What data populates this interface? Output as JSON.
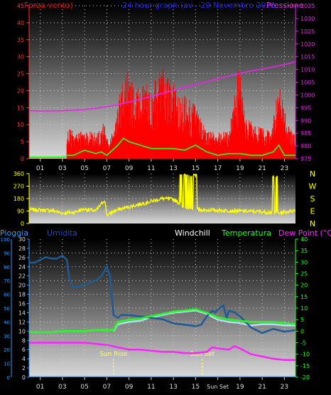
{
  "panel1": {
    "left_title": "Forza vento)",
    "center_title": "24 hour graph (av - 29 Novembre 2021",
    "right_title": "Pressione",
    "colors": {
      "wind": "#ff0000",
      "gust_line": "#22ff22",
      "pressure": "#ee22ee",
      "left_title": "#ff0000",
      "center_title": "#2222ff",
      "right_title": "#ee22ee"
    }
  },
  "panel2": {
    "compass_labels": [
      "N",
      "W",
      "S",
      "E",
      "N"
    ],
    "colors": {
      "direction": "#ffff00",
      "compass": "#ffff00"
    }
  },
  "panel3": {
    "titles": {
      "rain": "Pioggia",
      "humidity": "Umidita",
      "windchill": "Windchill",
      "temperature": "Temperatura",
      "dewpoint": "Dew Point (°C)"
    },
    "sunrise_label": "Sun Rise",
    "sunset_label": "Sun Set",
    "sunset_tick": "Sun Set",
    "colors": {
      "rain_title": "#3399ff",
      "humidity_title": "#2244cc",
      "windchill_title": "#ffffff",
      "temperature_title": "#22ff22",
      "dewpoint_title": "#ff22ff",
      "humidity": "#1f5a96",
      "temperature": "#22ff22",
      "dewpoint": "#ff22ff",
      "windchill": "#aee0f0",
      "rain": "#3399ff",
      "sun": "#ffff66"
    }
  },
  "x_ticks": [
    "01",
    "03",
    "05",
    "07",
    "09",
    "11",
    "13",
    "15",
    "17",
    "19",
    "21",
    "23"
  ],
  "x_ticks_bottom": [
    "01",
    "03",
    "05",
    "07",
    "09",
    "11",
    "13",
    "15",
    "Sun Set",
    "19",
    "21",
    "23"
  ],
  "chart_data": [
    {
      "type": "line",
      "title": "24 hour graph (av - 29 Novembre 2021",
      "x_range_hours": [
        0,
        24
      ],
      "x_ticks": [
        "01",
        "03",
        "05",
        "07",
        "09",
        "11",
        "13",
        "15",
        "17",
        "19",
        "21",
        "23"
      ],
      "left_axis": {
        "label": "Forza vento)",
        "ylim": [
          0,
          45
        ],
        "ticks": [
          0,
          5,
          10,
          15,
          20,
          25,
          30,
          35,
          40,
          45
        ]
      },
      "right_axis": {
        "label": "Pressione",
        "ylim": [
          975,
          1035
        ],
        "ticks": [
          975,
          980,
          985,
          990,
          995,
          1000,
          1005,
          1010,
          1015,
          1020,
          1025,
          1030,
          1035
        ]
      },
      "series": [
        {
          "name": "Pressione",
          "axis": "right",
          "x": [
            0,
            1,
            2,
            3,
            4,
            5,
            6,
            7,
            8,
            9,
            10,
            11,
            12,
            13,
            14,
            15,
            16,
            17,
            18,
            19,
            20,
            21,
            22,
            23,
            24
          ],
          "values": [
            993.8,
            993.7,
            993.7,
            993.8,
            994.0,
            994.3,
            994.8,
            995.4,
            996.2,
            997.2,
            998.3,
            999.4,
            1000.6,
            1001.8,
            1003.0,
            1004.1,
            1005.2,
            1006.3,
            1007.4,
            1008.4,
            1009.4,
            1010.2,
            1011.0,
            1011.9,
            1013.0
          ]
        },
        {
          "axis": "left",
          "x": [
            0,
            1,
            2,
            3,
            3.5,
            4,
            5,
            6,
            6.5,
            7,
            8,
            8.5,
            9,
            10,
            11,
            12,
            13,
            14,
            15,
            16,
            17,
            18,
            19,
            20,
            21,
            22,
            22.5,
            23,
            24
          ],
          "values": [
            0.5,
            0.5,
            0.5,
            0.5,
            1,
            1,
            2.5,
            1.5,
            2,
            1,
            4,
            6,
            5,
            4,
            3,
            3,
            3,
            2.5,
            4,
            2,
            1,
            1.5,
            1.5,
            1,
            1,
            2,
            4,
            1,
            1
          ]
        }
      ]
    },
    {
      "type": "line",
      "x_range_hours": [
        0,
        24
      ],
      "ylim": [
        0,
        360
      ],
      "y_ticks": [
        0,
        90,
        180,
        270,
        360
      ],
      "compass_labels": [
        "N",
        "W",
        "S",
        "E",
        "N"
      ]
    },
    {
      "type": "line",
      "x_range_hours": [
        0,
        24
      ],
      "x_ticks": [
        "01",
        "03",
        "05",
        "07",
        "09",
        "11",
        "13",
        "15",
        "Sun Set",
        "19",
        "21",
        "23"
      ],
      "axes": {
        "humidity": {
          "ylim": [
            0,
            100
          ],
          "ticks": [
            0,
            10,
            20,
            30,
            40,
            50,
            60,
            70,
            80,
            90,
            100
          ]
        },
        "rain": {
          "ylim": [
            0,
            30
          ],
          "ticks": [
            0,
            2,
            4,
            6,
            8,
            10,
            12,
            14,
            16,
            18,
            20,
            22,
            24,
            26,
            28,
            30
          ]
        },
        "temperature": {
          "ylim": [
            -20,
            40
          ],
          "ticks": [
            -20,
            -15,
            -10,
            -5,
            0,
            5,
            10,
            15,
            20,
            25,
            30,
            35,
            40
          ]
        }
      },
      "annotations": [
        {
          "label": "Sun Rise",
          "x": 7.6
        },
        {
          "label": "Sun Set",
          "x": 15.6
        }
      ],
      "series": [
        {
          "name": "Umidita",
          "axis": "humidity",
          "x": [
            0,
            0.5,
            1,
            1.5,
            2,
            2.5,
            3,
            3.4,
            3.6,
            3.9,
            4.2,
            5,
            6,
            6.5,
            7,
            7.3,
            7.6,
            8,
            8.3,
            9,
            10,
            11,
            12,
            13,
            14,
            15,
            15.5,
            16,
            16.5,
            16.8,
            17,
            17.5,
            17.8,
            18,
            18.5,
            19,
            19.5,
            20,
            21,
            22,
            23,
            24
          ],
          "values": [
            83,
            83,
            85,
            87,
            86,
            86,
            88,
            85,
            72,
            66,
            65,
            67,
            70,
            73,
            80,
            73,
            45,
            43,
            45,
            45,
            44,
            43,
            42,
            39,
            38,
            37,
            38,
            44,
            48,
            47,
            49,
            52,
            43,
            48,
            47,
            44,
            40,
            36,
            32,
            35,
            33,
            34
          ]
        },
        {
          "name": "Temperatura",
          "axis": "temperature",
          "x": [
            0,
            1,
            2,
            3,
            4,
            5,
            6,
            7,
            7.6,
            8,
            9,
            10,
            11,
            12,
            13,
            14,
            15,
            16,
            17,
            18,
            19,
            20,
            21,
            22,
            23,
            24
          ],
          "values": [
            -0.5,
            -0.5,
            -0.5,
            0,
            0,
            0,
            0.5,
            0.5,
            0.5,
            4,
            5,
            5.5,
            6.5,
            7.5,
            8.5,
            9,
            9.5,
            8,
            6,
            5,
            4.5,
            4,
            4,
            4,
            3.5,
            3
          ]
        },
        {
          "name": "Dew Point (°C)",
          "axis": "temperature",
          "x": [
            0,
            1,
            2,
            3,
            4,
            5,
            6,
            7,
            8,
            9,
            10,
            11,
            12,
            13,
            14,
            15,
            16,
            16.5,
            17,
            18,
            18.5,
            19,
            20,
            21,
            22,
            23,
            24
          ],
          "values": [
            -5,
            -5,
            -5,
            -5,
            -5,
            -5,
            -5.5,
            -6,
            -7,
            -8,
            -8,
            -8.5,
            -9,
            -9,
            -9.5,
            -9.5,
            -9,
            -7,
            -7.5,
            -8,
            -6.5,
            -7.5,
            -10,
            -11,
            -12,
            -12.5,
            -12.5
          ]
        },
        {
          "name": "Windchill",
          "axis": "temperature",
          "x": [
            7.6,
            8,
            9,
            10,
            11,
            12,
            13,
            14,
            15,
            16,
            17,
            18,
            19,
            20,
            21,
            22,
            23,
            24
          ],
          "values": [
            0,
            3,
            4,
            4.5,
            6,
            7,
            8,
            8.5,
            9,
            7.5,
            5,
            4,
            3.5,
            2.5,
            3,
            3,
            2.5,
            2.5
          ]
        },
        {
          "name": "Pioggia",
          "axis": "rain",
          "x": [
            0,
            24
          ],
          "values": [
            0,
            0
          ]
        }
      ]
    }
  ]
}
